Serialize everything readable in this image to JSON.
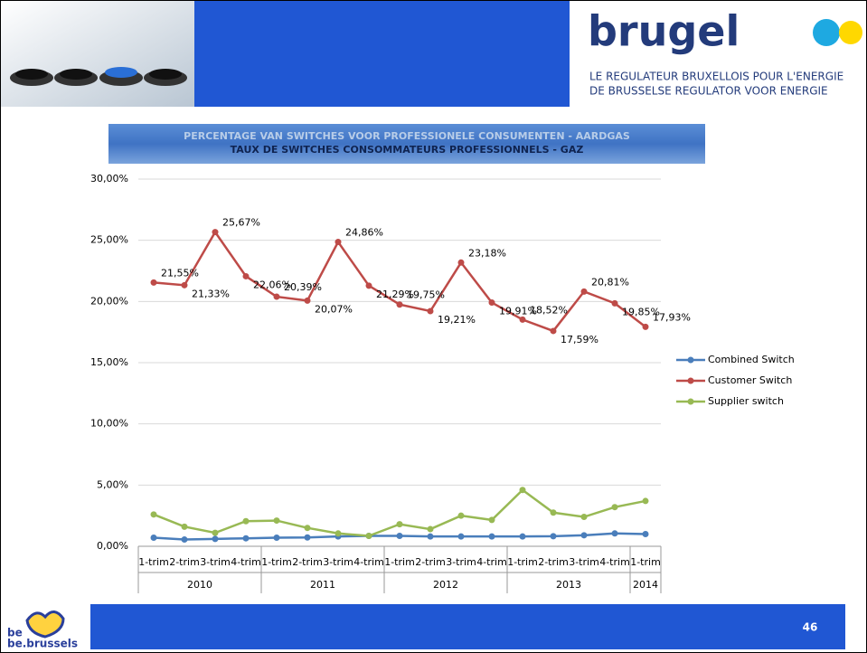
{
  "header": {
    "logo": "brugel",
    "subtitle_fr": "LE REGULATEUR BRUXELLOIS POUR L'ENERGIE",
    "subtitle_nl": "DE BRUSSELSE REGULATOR VOOR ENERGIE"
  },
  "footer": {
    "page": "46",
    "brand_top": "be",
    "brand_bottom": "be.brussels"
  },
  "chart_data": {
    "type": "line",
    "title": "PERCENTAGE VAN SWITCHES VOOR PROFESSIONELE CONSUMENTEN - AARDGAS",
    "subtitle": "TAUX DE SWITCHES CONSOMMATEURS PROFESSIONNELS - GAZ",
    "categories": [
      "1-trim",
      "2-trim",
      "3-trim",
      "4-trim",
      "1-trim",
      "2-trim",
      "3-trim",
      "4-trim",
      "1-trim",
      "2-trim",
      "3-trim",
      "4-trim",
      "1-trim",
      "2-trim",
      "3-trim",
      "4-trim",
      "1-trim"
    ],
    "groups": [
      {
        "label": "2010",
        "size": 4
      },
      {
        "label": "2011",
        "size": 4
      },
      {
        "label": "2012",
        "size": 4
      },
      {
        "label": "2013",
        "size": 4
      },
      {
        "label": "2014",
        "size": 1
      }
    ],
    "series": [
      {
        "name": "Combined Switch",
        "color": "#4a7ebb",
        "values": [
          0.7,
          0.55,
          0.6,
          0.65,
          0.7,
          0.72,
          0.8,
          0.85,
          0.85,
          0.8,
          0.8,
          0.8,
          0.8,
          0.82,
          0.9,
          1.05,
          1.0
        ]
      },
      {
        "name": "Customer Switch",
        "color": "#be4b48",
        "values": [
          21.55,
          21.33,
          25.67,
          22.06,
          20.39,
          20.07,
          24.86,
          21.29,
          19.75,
          19.21,
          23.18,
          19.91,
          18.52,
          17.59,
          20.81,
          19.85,
          17.93
        ],
        "value_labels": [
          "21,55%",
          "21,33%",
          "25,67%",
          "22,06%",
          "20,39%",
          "20,07%",
          "24,86%",
          "21,29%",
          "19,75%",
          "19,21%",
          "23,18%",
          "19,91%",
          "18,52%",
          "17,59%",
          "20,81%",
          "19,85%",
          "17,93%"
        ]
      },
      {
        "name": "Supplier switch",
        "color": "#98b954",
        "values": [
          2.6,
          1.6,
          1.1,
          2.05,
          2.1,
          1.5,
          1.05,
          0.85,
          1.8,
          1.4,
          2.5,
          2.15,
          4.6,
          2.75,
          2.4,
          3.2,
          3.7
        ]
      }
    ],
    "ylim": [
      0,
      30
    ],
    "yticks": [
      {
        "value": 0,
        "label": "0,00%"
      },
      {
        "value": 5,
        "label": "5,00%"
      },
      {
        "value": 10,
        "label": "10,00%"
      },
      {
        "value": 15,
        "label": "15,00%"
      },
      {
        "value": 20,
        "label": "20,00%"
      },
      {
        "value": 25,
        "label": "25,00%"
      },
      {
        "value": 30,
        "label": "30,00%"
      }
    ],
    "grid": true,
    "legend": "right"
  }
}
